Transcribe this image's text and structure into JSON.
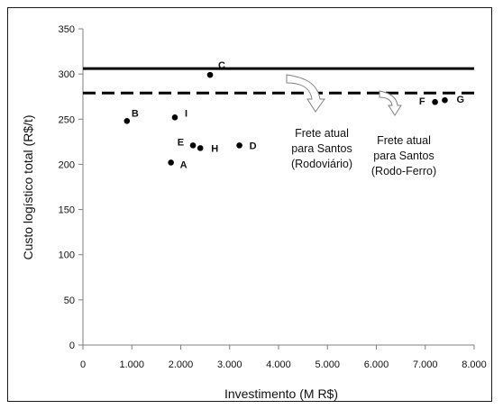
{
  "chart_data": {
    "type": "scatter",
    "xlabel": "Investimento  (M R$)",
    "ylabel": "Custo logístico total  (R$/t)",
    "xlim": [
      0,
      8000
    ],
    "ylim": [
      0,
      350
    ],
    "x_ticks": [
      {
        "value": 0,
        "label": "0"
      },
      {
        "value": 1000,
        "label": "1.000"
      },
      {
        "value": 2000,
        "label": "2.000"
      },
      {
        "value": 3000,
        "label": "3.000"
      },
      {
        "value": 4000,
        "label": "4.000"
      },
      {
        "value": 5000,
        "label": "5.000"
      },
      {
        "value": 6000,
        "label": "6.000"
      },
      {
        "value": 7000,
        "label": "7.000"
      },
      {
        "value": 8000,
        "label": "8.000"
      }
    ],
    "y_ticks": [
      {
        "value": 0,
        "label": "0"
      },
      {
        "value": 50,
        "label": "50"
      },
      {
        "value": 100,
        "label": "100"
      },
      {
        "value": 150,
        "label": "150"
      },
      {
        "value": 200,
        "label": "200"
      },
      {
        "value": 250,
        "label": "250"
      },
      {
        "value": 300,
        "label": "300"
      },
      {
        "value": 350,
        "label": "350"
      }
    ],
    "points": [
      {
        "label": "A",
        "x": 1800,
        "y": 202
      },
      {
        "label": "B",
        "x": 900,
        "y": 248
      },
      {
        "label": "C",
        "x": 2600,
        "y": 299
      },
      {
        "label": "D",
        "x": 3200,
        "y": 221
      },
      {
        "label": "E",
        "x": 2250,
        "y": 221
      },
      {
        "label": "F",
        "x": 7200,
        "y": 269
      },
      {
        "label": "G",
        "x": 7400,
        "y": 271
      },
      {
        "label": "H",
        "x": 2400,
        "y": 218
      },
      {
        "label": "I",
        "x": 1880,
        "y": 252
      }
    ],
    "reference_lines": [
      {
        "y": 306,
        "style": "solid",
        "annotation": [
          "Frete atual",
          "para Santos",
          "(Rodoviário)"
        ]
      },
      {
        "y": 279,
        "style": "dashed",
        "annotation": [
          "Frete atual",
          "para Santos",
          "(Rodo-Ferro)"
        ]
      }
    ],
    "grid": false,
    "legend": "none"
  }
}
